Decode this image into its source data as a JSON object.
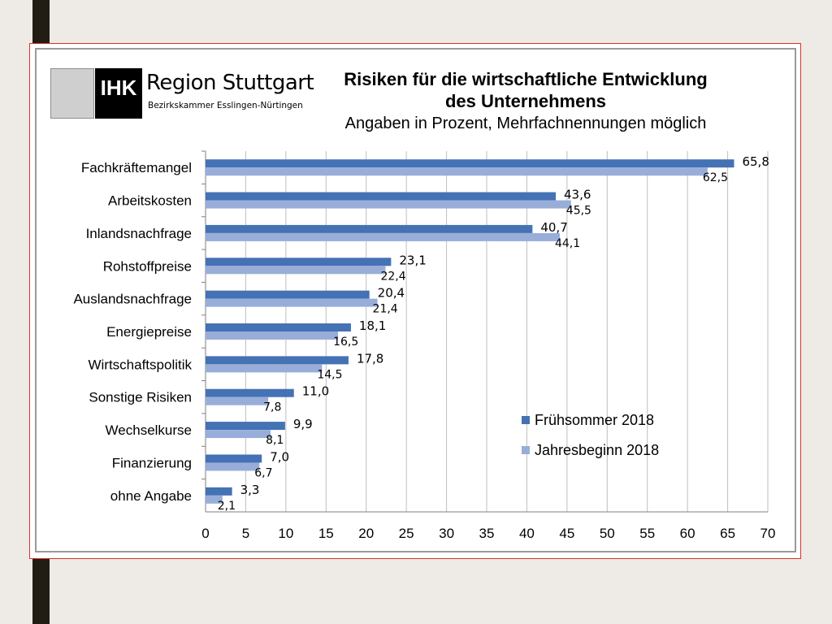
{
  "logo": {
    "mark": "IHK",
    "name": "Region Stuttgart",
    "sub": "Bezirkskammer Esslingen-Nürtingen"
  },
  "header": {
    "title_line1": "Risiken für die wirtschaftliche Entwicklung",
    "title_line2": "des Unternehmens",
    "subtitle": "Angaben in Prozent, Mehrfachnennungen möglich"
  },
  "colors": {
    "series1": "#4472b4",
    "series2": "#98aed9",
    "grid": "#bfbfbf"
  },
  "chart_data": {
    "type": "bar",
    "orientation": "horizontal",
    "title": "Risiken für die wirtschaftliche Entwicklung des Unternehmens",
    "subtitle": "Angaben in Prozent, Mehrfachnennungen möglich",
    "categories": [
      "Fachkräftemangel",
      "Arbeitskosten",
      "Inlandsnachfrage",
      "Rohstoffpreise",
      "Auslandsnachfrage",
      "Energiepreise",
      "Wirtschaftspolitik",
      "Sonstige Risiken",
      "Wechselkurse",
      "Finanzierung",
      "ohne Angabe"
    ],
    "series": [
      {
        "name": "Frühsommer 2018",
        "values": [
          65.8,
          43.6,
          40.7,
          23.1,
          20.4,
          18.1,
          17.8,
          11.0,
          9.9,
          7.0,
          3.3
        ],
        "labels": [
          "65,8",
          "43,6",
          "40,7",
          "23,1",
          "20,4",
          "18,1",
          "17,8",
          "11,0",
          "9,9",
          "7,0",
          "3,3"
        ]
      },
      {
        "name": "Jahresbeginn 2018",
        "values": [
          62.5,
          45.5,
          44.1,
          22.4,
          21.4,
          16.5,
          14.5,
          7.8,
          8.1,
          6.7,
          2.1
        ],
        "labels": [
          "62,5",
          "45,5",
          "44,1",
          "22,4",
          "21,4",
          "16,5",
          "14,5",
          "7,8",
          "8,1",
          "6,7",
          "2,1"
        ]
      }
    ],
    "xlim": [
      0,
      70
    ],
    "xticks": [
      0,
      5,
      10,
      15,
      20,
      25,
      30,
      35,
      40,
      45,
      50,
      55,
      60,
      65,
      70
    ],
    "grid": true,
    "legend_position": "bottom-right"
  }
}
